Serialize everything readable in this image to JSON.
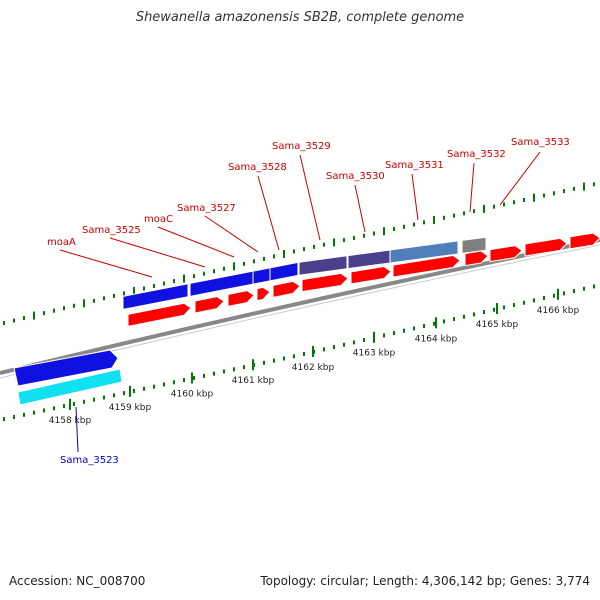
{
  "title": "Shewanella amazonensis SB2B, complete genome",
  "footer": {
    "accession_label": "Accession:",
    "accession": "NC_008700",
    "topology_label": "Topology:",
    "topology": "circular",
    "length_label": "Length:",
    "length": "4,306,142 bp",
    "genes_label": "Genes:",
    "genes": "3,774"
  },
  "colors": {
    "blue_gene": "#1010e0",
    "cyan_gene": "#10e0f0",
    "dark_slate_gene": "#4a3f8a",
    "steel_blue_gene": "#4f7fb8",
    "grey_gene": "#808080",
    "red_cds": "#ff0000",
    "gene_label": "#cc0000",
    "highlight_label": "#0000cc",
    "tick": "#007a00",
    "backbone": "#888888"
  },
  "kbp_labels": [
    "4158 kbp",
    "4159 kbp",
    "4160 kbp",
    "4161 kbp",
    "4162 kbp",
    "4163 kbp",
    "4164 kbp",
    "4165 kbp",
    "4166 kbp"
  ],
  "gene_labels": [
    {
      "name": "moaA",
      "color": "gene_label"
    },
    {
      "name": "Sama_3525",
      "color": "gene_label"
    },
    {
      "name": "moaC",
      "color": "gene_label"
    },
    {
      "name": "Sama_3527",
      "color": "gene_label"
    },
    {
      "name": "Sama_3528",
      "color": "gene_label"
    },
    {
      "name": "Sama_3529",
      "color": "gene_label"
    },
    {
      "name": "Sama_3530",
      "color": "gene_label"
    },
    {
      "name": "Sama_3531",
      "color": "gene_label"
    },
    {
      "name": "Sama_3532",
      "color": "gene_label"
    },
    {
      "name": "Sama_3533",
      "color": "gene_label"
    },
    {
      "name": "Sama_3523",
      "color": "highlight_label"
    }
  ]
}
